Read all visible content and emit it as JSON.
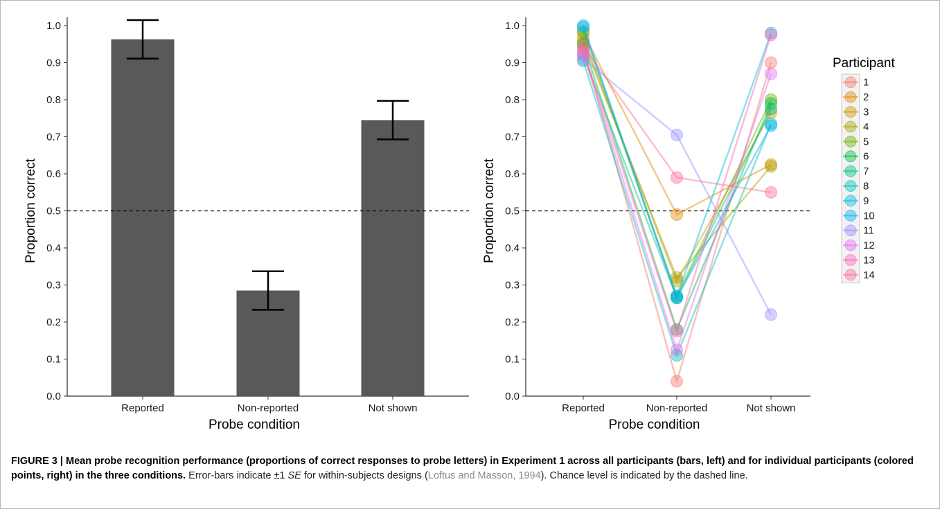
{
  "chart_data": [
    {
      "type": "bar",
      "panel": "left",
      "categories": [
        "Reported",
        "Non-reported",
        "Not shown"
      ],
      "values": [
        0.963,
        0.285,
        0.745
      ],
      "error": [
        0.052,
        0.052,
        0.052
      ],
      "xlabel": "Probe condition",
      "ylabel": "Proportion correct",
      "ylim": [
        0,
        1
      ],
      "yticks": [
        "0.0",
        "0.1",
        "0.2",
        "0.3",
        "0.4",
        "0.5",
        "0.6",
        "0.7",
        "0.8",
        "0.9",
        "1.0"
      ],
      "reference_line": 0.5,
      "bar_color": "#595959",
      "grid": false
    },
    {
      "type": "line",
      "panel": "right",
      "categories": [
        "Reported",
        "Non-reported",
        "Not shown"
      ],
      "xlabel": "Probe condition",
      "ylabel": "Proportion correct",
      "ylim": [
        0,
        1
      ],
      "yticks": [
        "0.0",
        "0.1",
        "0.2",
        "0.3",
        "0.4",
        "0.5",
        "0.6",
        "0.7",
        "0.8",
        "0.9",
        "1.0"
      ],
      "reference_line": 0.5,
      "legend_title": "Participant",
      "legend_position": "right",
      "grid": false,
      "series": [
        {
          "name": "1",
          "color": "#F8766D",
          "values": [
            0.94,
            0.04,
            0.9
          ]
        },
        {
          "name": "2",
          "color": "#E58700",
          "values": [
            0.98,
            0.49,
            0.625
          ]
        },
        {
          "name": "3",
          "color": "#C99800",
          "values": [
            0.965,
            0.31,
            0.765
          ]
        },
        {
          "name": "4",
          "color": "#A3A500",
          "values": [
            0.955,
            0.32,
            0.62
          ]
        },
        {
          "name": "5",
          "color": "#6BB100",
          "values": [
            0.985,
            0.27,
            0.8
          ]
        },
        {
          "name": "6",
          "color": "#00BA38",
          "values": [
            0.95,
            0.18,
            0.79
          ]
        },
        {
          "name": "7",
          "color": "#00BF7D",
          "values": [
            0.92,
            0.265,
            0.775
          ]
        },
        {
          "name": "8",
          "color": "#00C0AF",
          "values": [
            0.905,
            0.11,
            0.735
          ]
        },
        {
          "name": "9",
          "color": "#00BCD8",
          "values": [
            0.995,
            0.27,
            0.98
          ]
        },
        {
          "name": "10",
          "color": "#00B0F6",
          "values": [
            1.0,
            0.265,
            0.73
          ]
        },
        {
          "name": "11",
          "color": "#9590FF",
          "values": [
            0.91,
            0.705,
            0.22
          ]
        },
        {
          "name": "12",
          "color": "#E76BF3",
          "values": [
            0.925,
            0.125,
            0.87
          ]
        },
        {
          "name": "13",
          "color": "#FF62BC",
          "values": [
            0.93,
            0.175,
            0.975
          ]
        },
        {
          "name": "14",
          "color": "#FF6C90",
          "values": [
            0.945,
            0.59,
            0.55
          ]
        }
      ]
    }
  ],
  "caption": {
    "bold": "FIGURE 3 | Mean probe recognition performance (proportions of correct responses to probe letters) in Experiment 1 across all participants (bars, left) and for individual participants (colored points, right) in the three conditions.",
    "text_before_se": " Error-bars indicate ±1 ",
    "se": "SE",
    "text_after_se": " for within-subjects designs (",
    "ref": "Loftus and Masson, 1994",
    "text_end": "). Chance level is indicated by the dashed line."
  }
}
